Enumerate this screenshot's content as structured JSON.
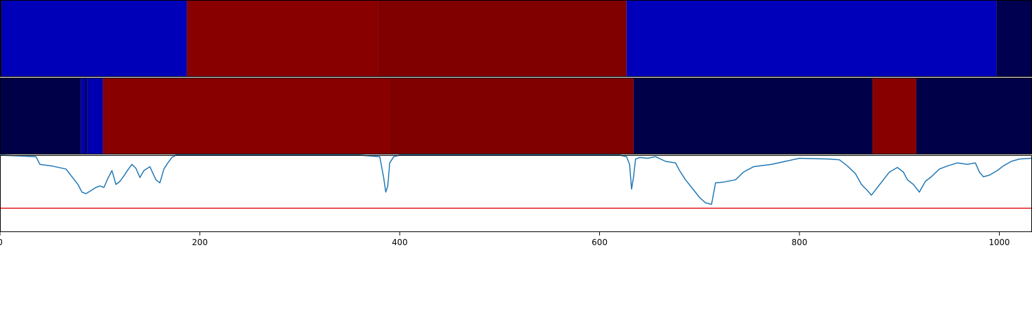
{
  "chart_data": [
    {
      "type": "heatmap",
      "title": "",
      "xlim": [
        0,
        1032
      ],
      "segments": [
        {
          "x0": 0,
          "x1": 2,
          "color": "#000050"
        },
        {
          "x0": 2,
          "x1": 187,
          "color": "#0000B8"
        },
        {
          "x0": 187,
          "x1": 378,
          "color": "#890000"
        },
        {
          "x0": 378,
          "x1": 627,
          "color": "#800000"
        },
        {
          "x0": 627,
          "x1": 997,
          "color": "#0000BB"
        },
        {
          "x0": 997,
          "x1": 1032,
          "color": "#000050"
        }
      ]
    },
    {
      "type": "heatmap",
      "title": "",
      "xlim": [
        0,
        1032
      ],
      "segments": [
        {
          "x0": 0,
          "x1": 81,
          "color": "#000048"
        },
        {
          "x0": 81,
          "x1": 85,
          "color": "#0000B0"
        },
        {
          "x0": 85,
          "x1": 87,
          "color": "#000048"
        },
        {
          "x0": 87,
          "x1": 103,
          "color": "#0000B0"
        },
        {
          "x0": 103,
          "x1": 390,
          "color": "#890000"
        },
        {
          "x0": 390,
          "x1": 634,
          "color": "#800000"
        },
        {
          "x0": 634,
          "x1": 873,
          "color": "#000048"
        },
        {
          "x0": 873,
          "x1": 917,
          "color": "#890000"
        },
        {
          "x0": 917,
          "x1": 1032,
          "color": "#000048"
        }
      ]
    },
    {
      "type": "line",
      "title": "",
      "xlabel": "",
      "ylabel": "",
      "xlim": [
        0,
        1032
      ],
      "ylim": [
        0,
        1
      ],
      "xticks": [
        0,
        200,
        400,
        600,
        800,
        1000
      ],
      "threshold": {
        "y": 0.31,
        "color": "#e41a1c"
      },
      "series": [
        {
          "color": "#1f77b4",
          "x": [
            0,
            20,
            36,
            40,
            52,
            66,
            72,
            78,
            82,
            86,
            90,
            96,
            100,
            104,
            108,
            112,
            116,
            120,
            124,
            128,
            132,
            136,
            140,
            144,
            150,
            156,
            160,
            164,
            168,
            172,
            176,
            182,
            186,
            192,
            200,
            260,
            300,
            360,
            380,
            384,
            386,
            388,
            390,
            394,
            400,
            440,
            500,
            560,
            600,
            620,
            627,
            630,
            632,
            634,
            636,
            640,
            648,
            656,
            666,
            676,
            680,
            686,
            694,
            700,
            706,
            712,
            716,
            724,
            736,
            744,
            754,
            772,
            800,
            830,
            840,
            848,
            856,
            862,
            868,
            872,
            878,
            884,
            890,
            898,
            904,
            908,
            914,
            920,
            926,
            932,
            940,
            948,
            958,
            968,
            976,
            980,
            984,
            990,
            998,
            1004,
            1012,
            1020,
            1032
          ],
          "y": [
            1.0,
            0.99,
            0.98,
            0.88,
            0.86,
            0.82,
            0.72,
            0.62,
            0.52,
            0.5,
            0.53,
            0.58,
            0.6,
            0.58,
            0.7,
            0.8,
            0.62,
            0.66,
            0.73,
            0.81,
            0.88,
            0.83,
            0.71,
            0.8,
            0.85,
            0.68,
            0.64,
            0.82,
            0.9,
            0.97,
            1.0,
            1.0,
            1.0,
            1.0,
            1.0,
            1.0,
            1.0,
            1.0,
            0.98,
            0.7,
            0.52,
            0.6,
            0.9,
            0.98,
            1.0,
            1.0,
            1.0,
            1.0,
            1.0,
            1.0,
            0.98,
            0.88,
            0.56,
            0.72,
            0.95,
            0.97,
            0.96,
            0.98,
            0.92,
            0.9,
            0.8,
            0.68,
            0.55,
            0.45,
            0.38,
            0.36,
            0.64,
            0.65,
            0.68,
            0.78,
            0.85,
            0.88,
            0.96,
            0.95,
            0.94,
            0.86,
            0.76,
            0.62,
            0.54,
            0.48,
            0.58,
            0.68,
            0.78,
            0.84,
            0.78,
            0.68,
            0.62,
            0.52,
            0.66,
            0.72,
            0.82,
            0.86,
            0.9,
            0.88,
            0.9,
            0.78,
            0.72,
            0.74,
            0.8,
            0.86,
            0.92,
            0.95,
            0.96
          ]
        }
      ]
    }
  ]
}
